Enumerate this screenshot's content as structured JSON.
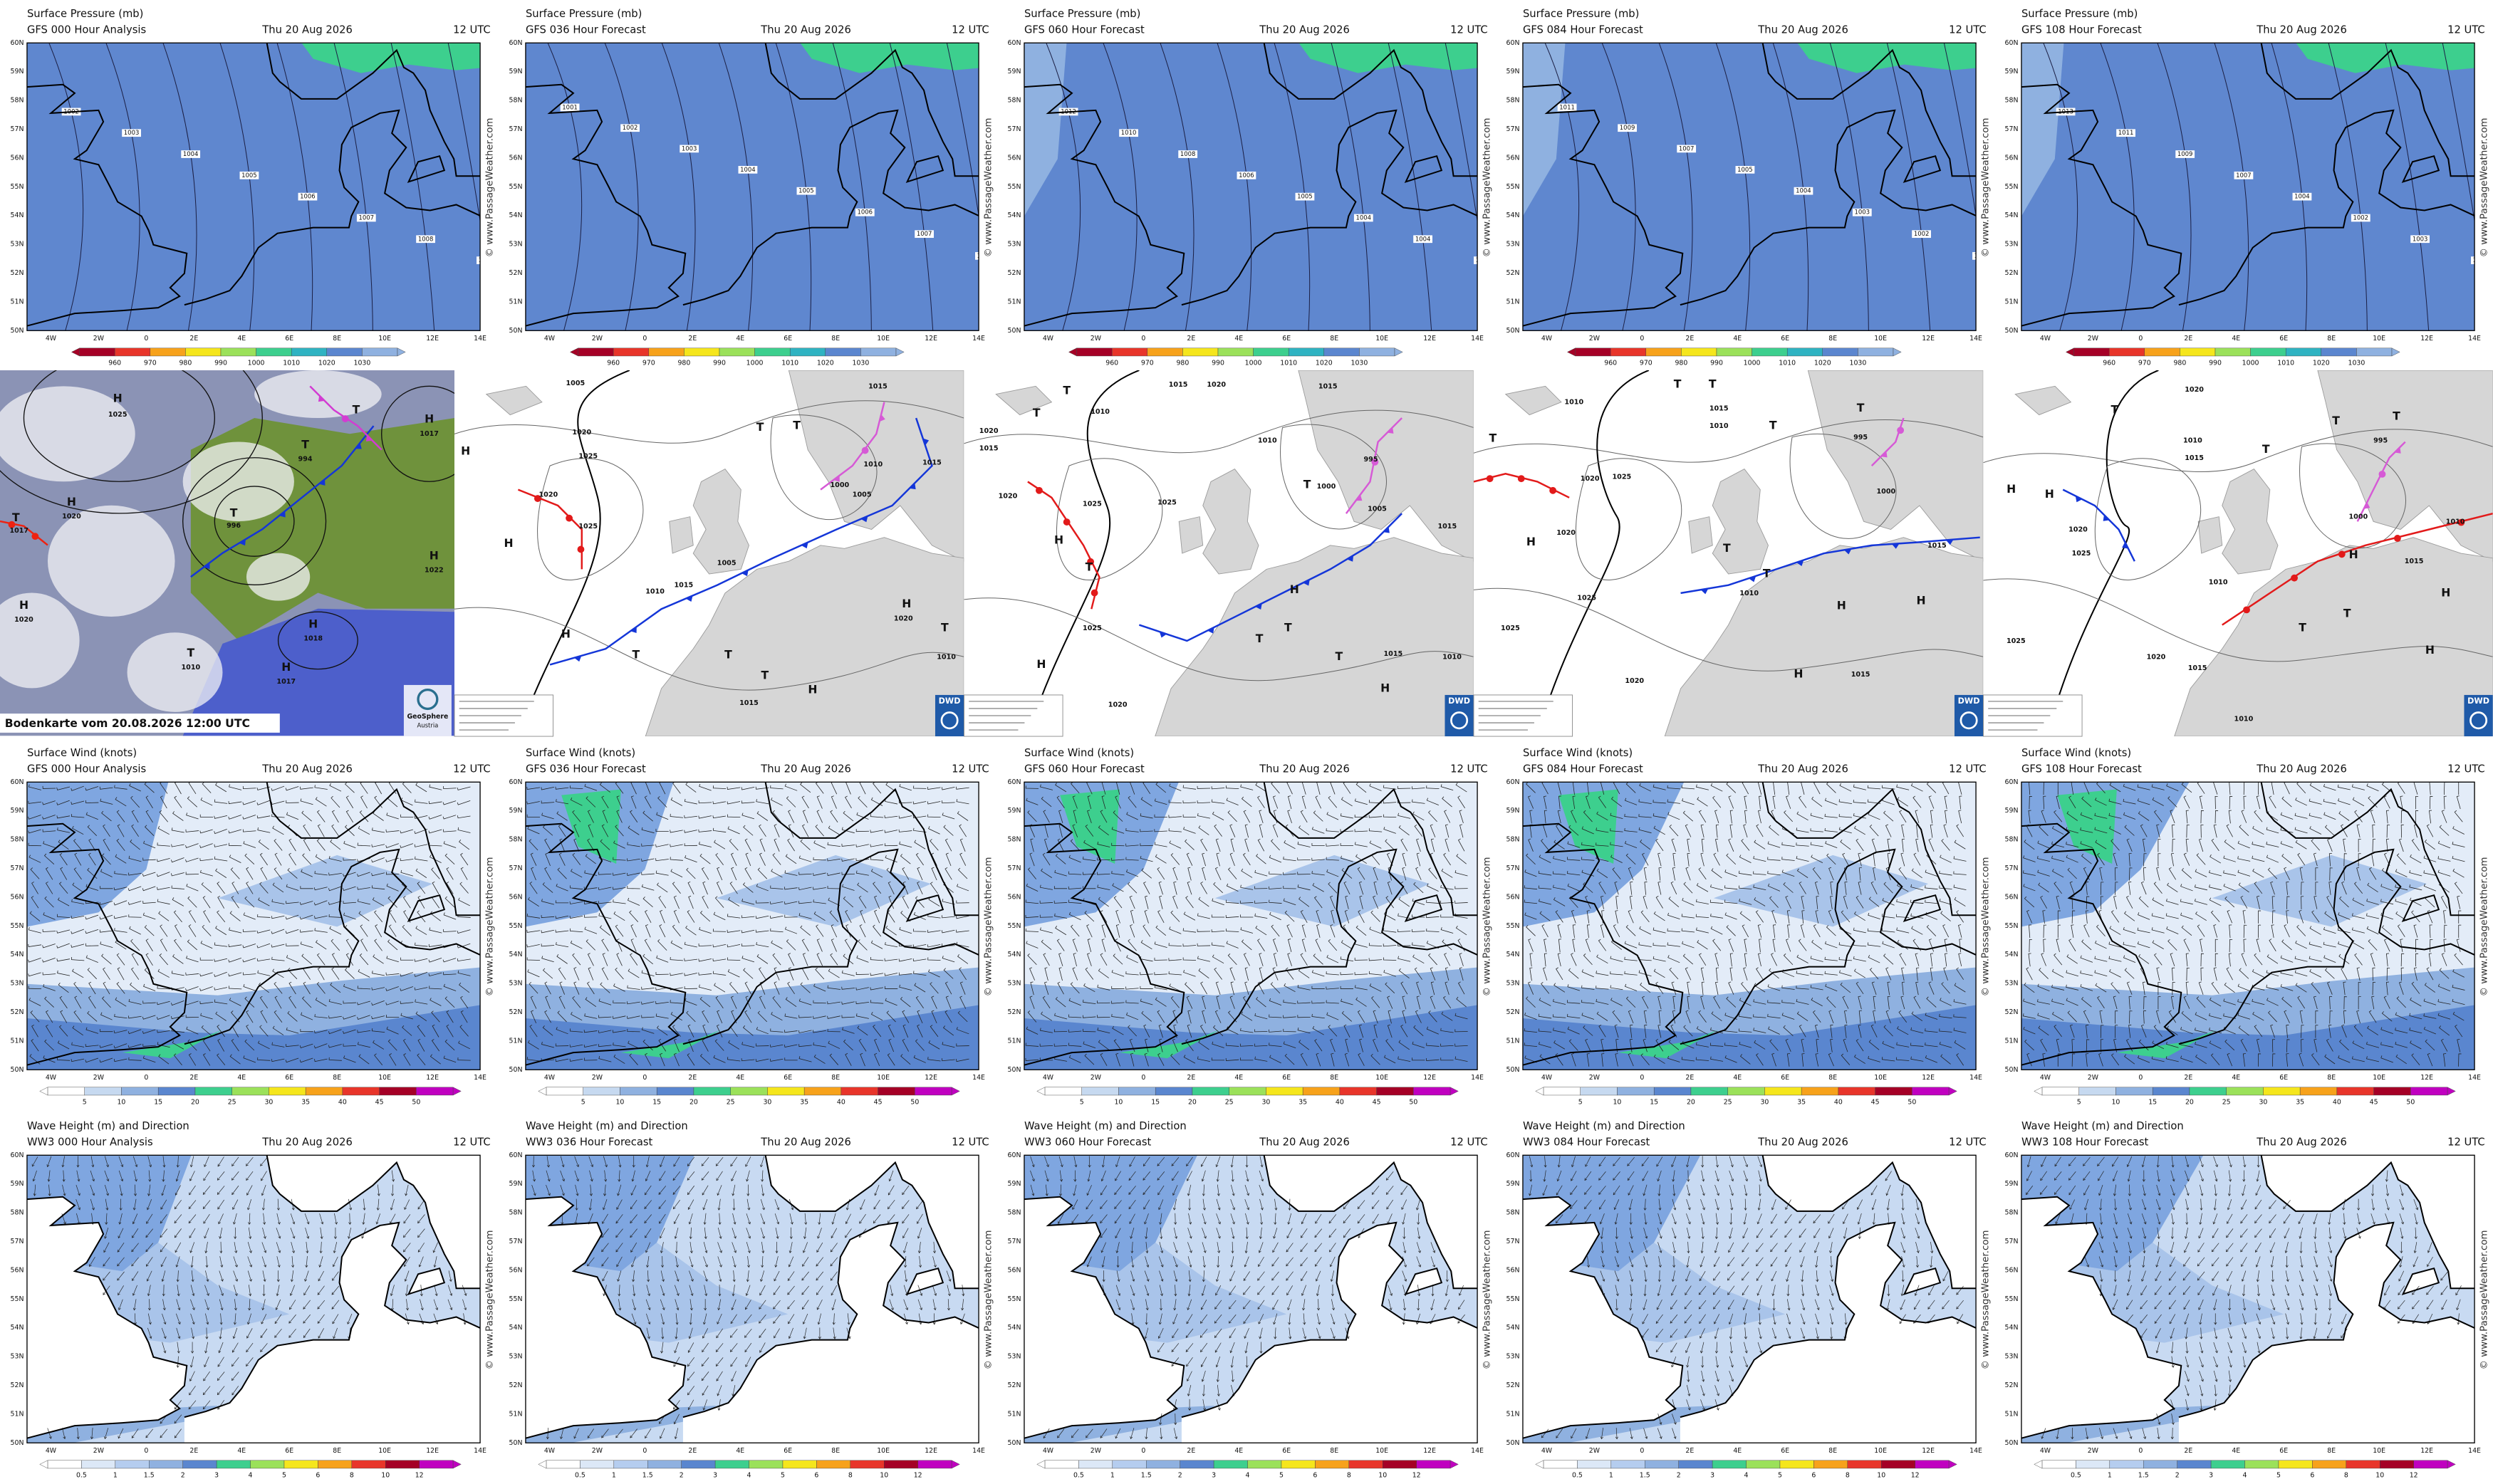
{
  "common": {
    "date": "Thu 20 Aug 2026",
    "time": "12 UTC",
    "watermark": "© www.PassageWeather.com",
    "lat_labels": [
      "60N",
      "59N",
      "58N",
      "57N",
      "56N",
      "55N",
      "54N",
      "53N",
      "52N",
      "51N",
      "50N"
    ],
    "lon_labels": [
      "4W",
      "2W",
      "0",
      "2E",
      "4E",
      "6E",
      "8E",
      "10E",
      "12E",
      "14E"
    ]
  },
  "rows": [
    {
      "title": "Surface Pressure (mb)",
      "models": [
        "GFS 000 Hour Analysis",
        "GFS 036 Hour Forecast",
        "GFS 060 Hour Forecast",
        "GFS 084 Hour Forecast",
        "GFS 108 Hour Forecast"
      ],
      "colorbar": [
        "960",
        "970",
        "980",
        "990",
        "1000",
        "1010",
        "1020",
        "1030"
      ],
      "isobar_labels": [
        [
          "1002",
          "1003",
          "1004",
          "1005",
          "1006",
          "1007",
          "1008",
          "1009"
        ],
        [
          "1001",
          "1002",
          "1003",
          "1004",
          "1005",
          "1006",
          "1007",
          "1008"
        ],
        [
          "1012",
          "1010",
          "1008",
          "1006",
          "1005",
          "1004",
          "1004",
          "1003"
        ],
        [
          "1011",
          "1009",
          "1007",
          "1005",
          "1004",
          "1003",
          "1002",
          "1002"
        ],
        [
          "1013",
          "1011",
          "1009",
          "1007",
          "1004",
          "1002",
          "1003",
          "1006"
        ]
      ]
    },
    {
      "title": "Surface Wind (knots)",
      "models": [
        "GFS 000 Hour Analysis",
        "GFS 036 Hour Forecast",
        "GFS 060 Hour Forecast",
        "GFS 084 Hour Forecast",
        "GFS 108 Hour Forecast"
      ],
      "colorbar": [
        "5",
        "10",
        "15",
        "20",
        "25",
        "30",
        "35",
        "40",
        "45",
        "50"
      ]
    },
    {
      "title": "Wave Height (m) and Direction",
      "models": [
        "WW3 000 Hour Analysis",
        "WW3 036 Hour Forecast",
        "WW3 060 Hour Forecast",
        "WW3 084 Hour Forecast",
        "WW3 108 Hour Forecast"
      ],
      "colorbar": [
        "0.5",
        "1",
        "1.5",
        "2",
        "3",
        "4",
        "5",
        "6",
        "8",
        "10",
        "12"
      ]
    }
  ],
  "maps": {
    "satellite": {
      "caption": "Bodenkarte vom 20.08.2026 12:00 UTC",
      "logo": "GeoSphere",
      "logo_sub": "Austria",
      "labels": [
        "H",
        "1025",
        "T",
        "1017",
        "H",
        "1020",
        "H",
        "1020",
        "T",
        "996",
        "T",
        "994",
        "T",
        "H",
        "1017",
        "H",
        "1022",
        "H",
        "1018",
        "T",
        "1010",
        "H",
        "1017"
      ]
    },
    "dwd": [
      {
        "logo": "DWD",
        "labels": [
          "H",
          "1005",
          "1020",
          "1025",
          "1020",
          "1025",
          "H",
          "H",
          "T",
          "1010",
          "1015",
          "1005",
          "T",
          "T",
          "1015",
          "1010",
          "1000",
          "1005",
          "1015",
          "H",
          "1020",
          "T",
          "T",
          "H",
          "1015",
          "1010",
          "T"
        ]
      },
      {
        "logo": "DWD",
        "labels": [
          "T",
          "1015",
          "1020",
          "T",
          "1010",
          "1020",
          "1015",
          "1020",
          "1025",
          "1025",
          "H",
          "T",
          "1025",
          "H",
          "1020",
          "1010",
          "1015",
          "T",
          "995",
          "1000",
          "1005",
          "1015",
          "T",
          "T",
          "H",
          "1015",
          "1010",
          "H",
          "T"
        ]
      },
      {
        "logo": "DWD",
        "labels": [
          "T",
          "1010",
          "T",
          "T",
          "1015",
          "1010",
          "1020",
          "1025",
          "1020",
          "H",
          "1025",
          "1025",
          "1020",
          "T",
          "T",
          "995",
          "1000",
          "1015",
          "H",
          "H",
          "1015",
          "1010",
          "H",
          "T",
          "T"
        ]
      },
      {
        "logo": "DWD",
        "labels": [
          "1020",
          "T",
          "H",
          "H",
          "1010",
          "1015",
          "1020",
          "1025",
          "1025",
          "1020",
          "1010",
          "1015",
          "995",
          "1000",
          "1010",
          "1015",
          "T",
          "T",
          "T",
          "H",
          "H",
          "H",
          "T",
          "T",
          "1010"
        ]
      }
    ]
  }
}
